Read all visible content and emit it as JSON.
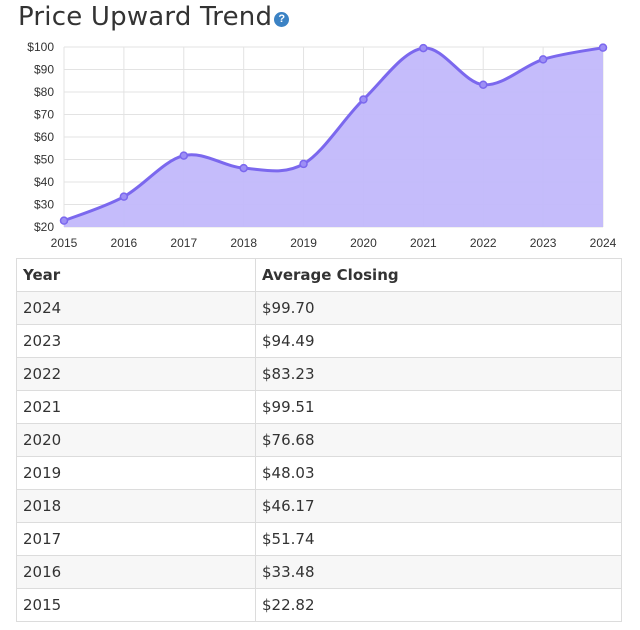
{
  "header": {
    "title": "Price Upward Trend",
    "help_glyph": "?"
  },
  "chart_data": {
    "type": "area",
    "x": [
      "2015",
      "2016",
      "2017",
      "2018",
      "2019",
      "2020",
      "2021",
      "2022",
      "2023",
      "2024"
    ],
    "values": [
      22.82,
      33.48,
      51.74,
      46.17,
      48.03,
      76.68,
      99.51,
      83.23,
      94.49,
      99.7
    ],
    "ylim": [
      20,
      100
    ],
    "yticks": [
      20,
      30,
      40,
      50,
      60,
      70,
      80,
      90,
      100
    ],
    "ytick_labels": [
      "$20",
      "$30",
      "$40",
      "$50",
      "$60",
      "$70",
      "$80",
      "$90",
      "$100"
    ],
    "grid": true,
    "line_color": "#7b68ee",
    "fill_color": "#c2b8fb"
  },
  "table": {
    "headers": [
      "Year",
      "Average Closing"
    ],
    "rows": [
      [
        "2024",
        "$99.70"
      ],
      [
        "2023",
        "$94.49"
      ],
      [
        "2022",
        "$83.23"
      ],
      [
        "2021",
        "$99.51"
      ],
      [
        "2020",
        "$76.68"
      ],
      [
        "2019",
        "$48.03"
      ],
      [
        "2018",
        "$46.17"
      ],
      [
        "2017",
        "$51.74"
      ],
      [
        "2016",
        "$33.48"
      ],
      [
        "2015",
        "$22.82"
      ]
    ]
  }
}
